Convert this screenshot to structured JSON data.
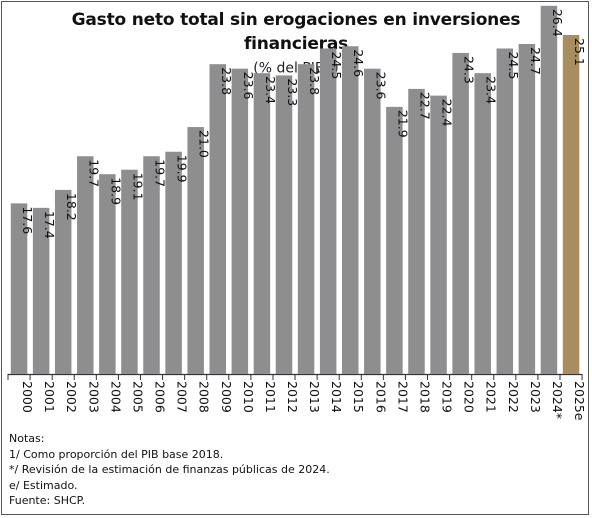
{
  "header": {
    "title_line1": "Gasto neto total sin erogaciones en inversiones",
    "title_line2": "financieras",
    "subtitle": "(% del PIB",
    "subtitle_sup": "1/",
    "subtitle_end": ")"
  },
  "notes": {
    "heading": "Notas:",
    "lines": [
      "1/ Como proporción del PIB base 2018.",
      "*/ Revisión de la estimación de finanzas públicas de 2024.",
      "e/ Estimado.",
      "Fuente: SHCP."
    ]
  },
  "colors": {
    "bar": "#8e8e90",
    "highlight": "#a88d60",
    "label": "#111111"
  },
  "chart_data": {
    "type": "bar",
    "title": "Gasto neto total sin erogaciones en inversiones financieras",
    "subtitle": "(% del PIB1/)",
    "categories": [
      "2000",
      "2001",
      "2002",
      "2003",
      "2004",
      "2005",
      "2006",
      "2007",
      "2008",
      "2009",
      "2010",
      "2011",
      "2012",
      "2013",
      "2014",
      "2015",
      "2016",
      "2017",
      "2018",
      "2019",
      "2020",
      "2021",
      "2022",
      "2023",
      "2024*",
      "2025e"
    ],
    "values": [
      17.6,
      17.4,
      18.2,
      19.7,
      18.9,
      19.1,
      19.7,
      19.9,
      21.0,
      23.8,
      23.6,
      23.4,
      23.3,
      23.8,
      24.5,
      24.6,
      23.6,
      21.9,
      22.7,
      22.4,
      24.3,
      23.4,
      24.5,
      24.7,
      26.4,
      25.1
    ],
    "value_labels": [
      "17.6",
      "17.4",
      "18.2",
      "19.7",
      "18.9",
      "19.1",
      "19.7",
      "19.9",
      "21.0",
      "23.8",
      "23.6",
      "23.4",
      "23.3",
      "23.8",
      "24.5",
      "24.6",
      "23.6",
      "21.9",
      "22.7",
      "22.4",
      "24.3",
      "23.4",
      "24.5",
      "24.7",
      "26.4",
      "25.1"
    ],
    "highlight_category": "2025e",
    "xlabel": "",
    "ylabel": "",
    "ylim": [
      10,
      28
    ],
    "grid": false,
    "legend": "none"
  }
}
